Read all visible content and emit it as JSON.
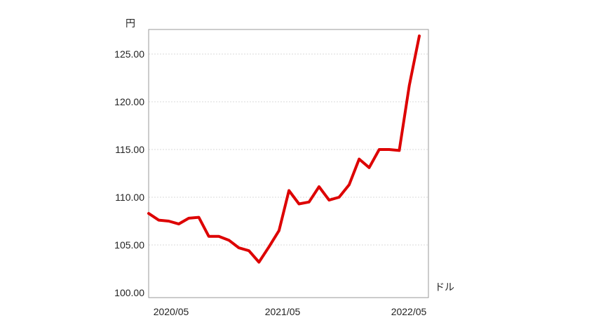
{
  "chart_data": {
    "type": "line",
    "title": "",
    "ylabel": "円",
    "xlabel": "ドル",
    "ylim": [
      100,
      127.5
    ],
    "yticks": [
      "100.00",
      "105.00",
      "110.00",
      "115.00",
      "120.00",
      "125.00"
    ],
    "xticks": [
      "2020/05",
      "2021/05",
      "2022/05"
    ],
    "grid": true,
    "series": [
      {
        "color": "#dd0000",
        "values": [
          108.3,
          107.6,
          107.5,
          107.2,
          107.8,
          107.9,
          105.9,
          105.9,
          105.5,
          104.7,
          104.4,
          103.2,
          104.8,
          106.5,
          110.7,
          109.3,
          109.5,
          111.1,
          109.7,
          110.0,
          111.3,
          114.0,
          113.1,
          115.0,
          115.0,
          114.9,
          121.7,
          126.9
        ]
      }
    ]
  }
}
